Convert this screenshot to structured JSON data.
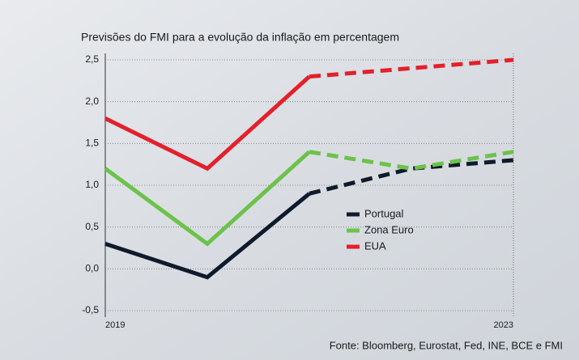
{
  "chart_data": {
    "type": "line",
    "title": "Previsões do FMI para a evolução da inflação em percentagem",
    "source": "Fonte: Bloomberg, Eurostat, Fed, INE, BCE e FMI",
    "categories": [
      "2019",
      null,
      null,
      null,
      "2023"
    ],
    "series": [
      {
        "name": "Portugal",
        "color": "#0f1a2c",
        "values": [
          0.3,
          -0.1,
          0.9,
          1.2,
          1.3
        ]
      },
      {
        "name": "Zona Euro",
        "color": "#6cc24a",
        "values": [
          1.2,
          0.3,
          1.4,
          1.2,
          1.4
        ]
      },
      {
        "name": "EUA",
        "color": "#e3202b",
        "values": [
          1.8,
          1.2,
          2.3,
          2.4,
          2.5
        ]
      }
    ],
    "dash_from_index": 2,
    "ylim": [
      -0.5,
      2.5
    ],
    "yticks": [
      {
        "value": -0.5,
        "label": "-0,5"
      },
      {
        "value": 0,
        "label": "0,0"
      },
      {
        "value": 0.5,
        "label": "0,5"
      },
      {
        "value": 1,
        "label": "1,0"
      },
      {
        "value": 1.5,
        "label": "1,5"
      },
      {
        "value": 2,
        "label": "2,0"
      },
      {
        "value": 2.5,
        "label": "2,5"
      }
    ],
    "grid": true
  }
}
